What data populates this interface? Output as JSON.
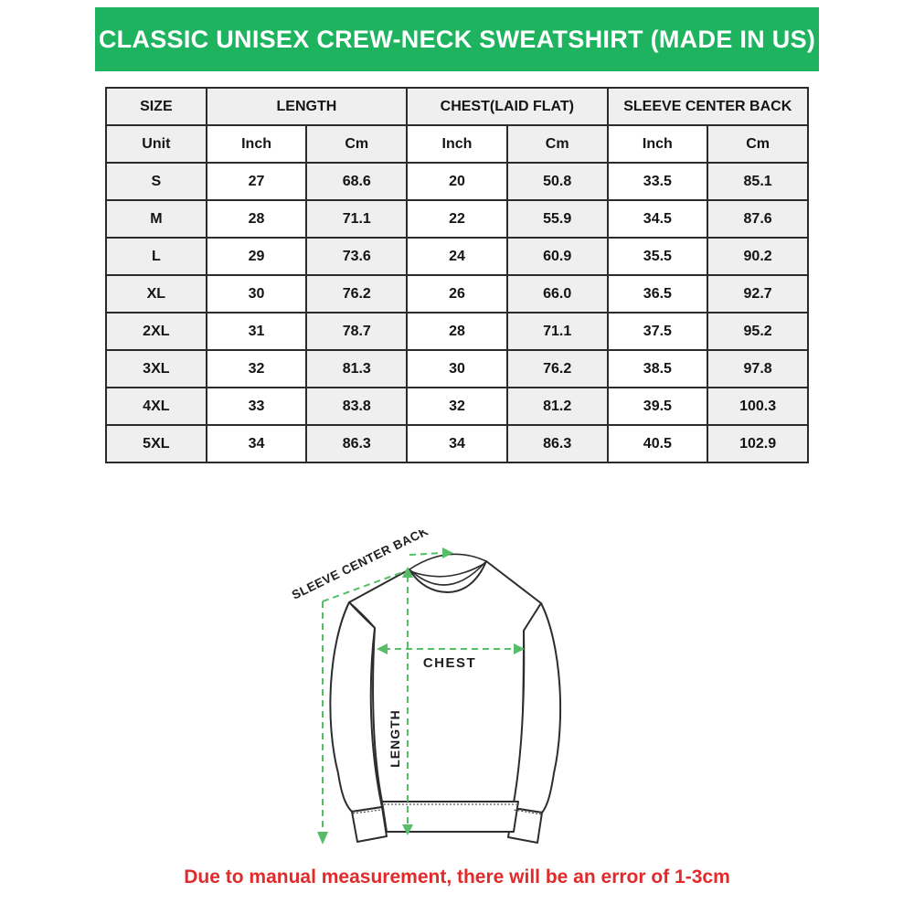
{
  "header": {
    "title": "CLASSIC UNISEX CREW-NECK SWEATSHIRT (MADE IN US)"
  },
  "colors": {
    "banner_bg": "#1eb45f",
    "banner_text": "#ffffff",
    "measure_green": "#57bd68",
    "note_red": "#e12a2a",
    "cell_shade": "#efefef",
    "grid": "#2b2b2b",
    "outline": "#2d2d2d"
  },
  "table": {
    "col_groups": [
      {
        "label": "SIZE",
        "span": 1
      },
      {
        "label": "LENGTH",
        "span": 2
      },
      {
        "label": "CHEST(LAID FLAT)",
        "span": 2
      },
      {
        "label": "SLEEVE CENTER BACK",
        "span": 2
      }
    ],
    "unit_row": [
      "Unit",
      "Inch",
      "Cm",
      "Inch",
      "Cm",
      "Inch",
      "Cm"
    ],
    "rows": [
      [
        "S",
        "27",
        "68.6",
        "20",
        "50.8",
        "33.5",
        "85.1"
      ],
      [
        "M",
        "28",
        "71.1",
        "22",
        "55.9",
        "34.5",
        "87.6"
      ],
      [
        "L",
        "29",
        "73.6",
        "24",
        "60.9",
        "35.5",
        "90.2"
      ],
      [
        "XL",
        "30",
        "76.2",
        "26",
        "66.0",
        "36.5",
        "92.7"
      ],
      [
        "2XL",
        "31",
        "78.7",
        "28",
        "71.1",
        "37.5",
        "95.2"
      ],
      [
        "3XL",
        "32",
        "81.3",
        "30",
        "76.2",
        "38.5",
        "97.8"
      ],
      [
        "4XL",
        "33",
        "83.8",
        "32",
        "81.2",
        "39.5",
        "100.3"
      ],
      [
        "5XL",
        "34",
        "86.3",
        "34",
        "86.3",
        "40.5",
        "102.9"
      ]
    ]
  },
  "diagram": {
    "sleeve_label": "SLEEVE CENTER BACK",
    "chest_label": "CHEST",
    "length_label": "LENGTH"
  },
  "footer": {
    "note": "Due to manual measurement, there will be an error of 1-3cm"
  },
  "chart_data": {
    "type": "table",
    "title": "CLASSIC UNISEX CREW-NECK SWEATSHIRT (MADE IN US)",
    "column_groups": [
      "SIZE",
      "LENGTH",
      "CHEST(LAID FLAT)",
      "SLEEVE CENTER BACK"
    ],
    "columns": [
      "Size",
      "Length (Inch)",
      "Length (Cm)",
      "Chest Laid Flat (Inch)",
      "Chest Laid Flat (Cm)",
      "Sleeve Center Back (Inch)",
      "Sleeve Center Back (Cm)"
    ],
    "rows": [
      [
        "S",
        27,
        68.6,
        20,
        50.8,
        33.5,
        85.1
      ],
      [
        "M",
        28,
        71.1,
        22,
        55.9,
        34.5,
        87.6
      ],
      [
        "L",
        29,
        73.6,
        24,
        60.9,
        35.5,
        90.2
      ],
      [
        "XL",
        30,
        76.2,
        26,
        66.0,
        36.5,
        92.7
      ],
      [
        "2XL",
        31,
        78.7,
        28,
        71.1,
        37.5,
        95.2
      ],
      [
        "3XL",
        32,
        81.3,
        30,
        76.2,
        38.5,
        97.8
      ],
      [
        "4XL",
        33,
        83.8,
        32,
        81.2,
        39.5,
        100.3
      ],
      [
        "5XL",
        34,
        86.3,
        34,
        86.3,
        40.5,
        102.9
      ]
    ],
    "footnote": "Due to manual measurement, there will be an error of 1-3cm"
  }
}
